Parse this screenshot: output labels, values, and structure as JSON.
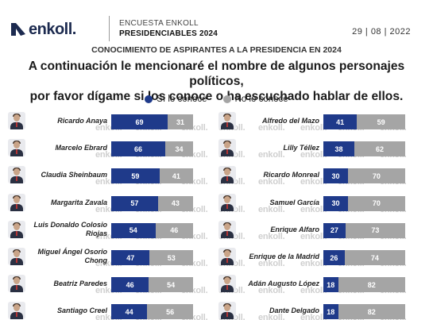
{
  "header": {
    "brand": "enkoll.",
    "survey_label": "ENCUESTA ENKOLL",
    "survey_title": "PRESIDENCIABLES 2024",
    "date": "29 | 08 | 2022"
  },
  "subheading": "CONOCIMIENTO DE ASPIRANTES A LA PRESIDENCIA EN 2024",
  "question_line1": "A continuación le mencionaré el nombre de algunos personajes políticos,",
  "question_line2": "por favor dígame si los conoce o ha escuchado hablar de ellos.",
  "watermark": "enkoll.",
  "colors": {
    "yes": "#1f3a8a",
    "no": "#a5a5a5",
    "brand": "#1c2a4f"
  },
  "chart_data": {
    "type": "bar",
    "orientation": "horizontal",
    "stacked": true,
    "unit": "%",
    "legend": [
      "Sí lo conoce",
      "No lo conoce"
    ],
    "groups": [
      {
        "categories": [
          "Ricardo Anaya",
          "Marcelo Ebrard",
          "Claudia Sheinbaum",
          "Margarita Zavala",
          "Luis Donaldo Colosio Riojas",
          "Miguel Ángel Osorio Chong",
          "Beatriz Paredes",
          "Santiago Creel"
        ],
        "category_lines": [
          [
            "Ricardo Anaya"
          ],
          [
            "Marcelo Ebrard"
          ],
          [
            "Claudia Sheinbaum"
          ],
          [
            "Margarita Zavala"
          ],
          [
            "Luis Donaldo Colosio",
            "Riojas"
          ],
          [
            "Miguel Ángel Osorio",
            "Chong"
          ],
          [
            "Beatriz Paredes"
          ],
          [
            "Santiago Creel"
          ]
        ],
        "series": [
          {
            "name": "Sí lo conoce",
            "values": [
              69,
              66,
              59,
              57,
              54,
              47,
              46,
              44
            ]
          },
          {
            "name": "No lo conoce",
            "values": [
              31,
              34,
              41,
              43,
              46,
              53,
              54,
              56
            ]
          }
        ]
      },
      {
        "categories": [
          "Alfredo del Mazo",
          "Lilly Téllez",
          "Ricardo Monreal",
          "Samuel García",
          "Enrique Alfaro",
          "Enrique de la Madrid",
          "Adán Augusto López",
          "Dante Delgado"
        ],
        "category_lines": [
          [
            "Alfredo del Mazo"
          ],
          [
            "Lilly Téllez"
          ],
          [
            "Ricardo Monreal"
          ],
          [
            "Samuel García"
          ],
          [
            "Enrique Alfaro"
          ],
          [
            "Enrique de la Madrid"
          ],
          [
            "Adán Augusto López"
          ],
          [
            "Dante Delgado"
          ]
        ],
        "series": [
          {
            "name": "Sí lo conoce",
            "values": [
              41,
              38,
              30,
              30,
              27,
              26,
              18,
              18
            ]
          },
          {
            "name": "No lo conoce",
            "values": [
              59,
              62,
              70,
              70,
              73,
              74,
              82,
              82
            ]
          }
        ]
      }
    ]
  }
}
